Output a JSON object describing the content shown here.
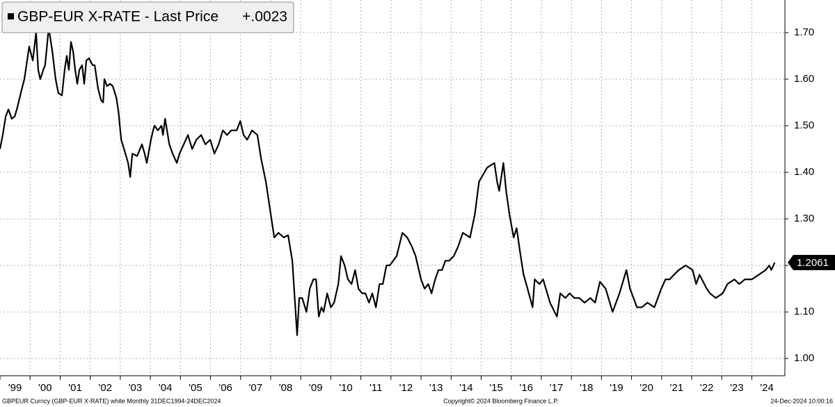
{
  "chart_data": {
    "type": "line",
    "legend_change": "+.0023",
    "footer_left": "GBPEUR Curncy (GBP-EUR X-RATE) white  Monthly 31DEC1994-24DEC2024",
    "footer_center": "Copyright© 2024 Bloomberg Finance L.P.",
    "footer_right": "24-Dec-2024 10:00:16",
    "xlim": [
      1999,
      2025.1
    ],
    "ylim": [
      0.963,
      1.77
    ],
    "grid": true,
    "xticks": [
      {
        "value": 1999,
        "label": "'99"
      },
      {
        "value": 2000,
        "label": "'00"
      },
      {
        "value": 2001,
        "label": "'01"
      },
      {
        "value": 2002,
        "label": "'02"
      },
      {
        "value": 2003,
        "label": "'03"
      },
      {
        "value": 2004,
        "label": "'04"
      },
      {
        "value": 2005,
        "label": "'05"
      },
      {
        "value": 2006,
        "label": "'06"
      },
      {
        "value": 2007,
        "label": "'07"
      },
      {
        "value": 2008,
        "label": "'08"
      },
      {
        "value": 2009,
        "label": "'09"
      },
      {
        "value": 2010,
        "label": "'10"
      },
      {
        "value": 2011,
        "label": "'11"
      },
      {
        "value": 2012,
        "label": "'12"
      },
      {
        "value": 2013,
        "label": "'13"
      },
      {
        "value": 2014,
        "label": "'14"
      },
      {
        "value": 2015,
        "label": "'15"
      },
      {
        "value": 2016,
        "label": "'16"
      },
      {
        "value": 2017,
        "label": "'17"
      },
      {
        "value": 2018,
        "label": "'18"
      },
      {
        "value": 2019,
        "label": "'19"
      },
      {
        "value": 2020,
        "label": "'20"
      },
      {
        "value": 2021,
        "label": "'21"
      },
      {
        "value": 2022,
        "label": "'22"
      },
      {
        "value": 2023,
        "label": "'23"
      },
      {
        "value": 2024,
        "label": "'24"
      }
    ],
    "yticks": [
      {
        "value": 1.0,
        "label": "1.00"
      },
      {
        "value": 1.1,
        "label": "1.10"
      },
      {
        "value": 1.2,
        "label": "1.20"
      },
      {
        "value": 1.3,
        "label": "1.30"
      },
      {
        "value": 1.4,
        "label": "1.40"
      },
      {
        "value": 1.5,
        "label": "1.50"
      },
      {
        "value": 1.6,
        "label": "1.60"
      },
      {
        "value": 1.7,
        "label": "1.70"
      }
    ],
    "series": [
      {
        "name": "GBP-EUR X-RATE - Last Price",
        "color": "#000000",
        "x": [
          1999.0,
          1999.09,
          1999.19,
          1999.28,
          1999.39,
          1999.49,
          1999.58,
          1999.69,
          1999.81,
          1999.88,
          1999.97,
          2000.09,
          2000.2,
          2000.27,
          2000.34,
          2000.44,
          2000.5,
          2000.62,
          2000.74,
          2000.85,
          2000.94,
          2001.06,
          2001.15,
          2001.22,
          2001.29,
          2001.36,
          2001.43,
          2001.5,
          2001.57,
          2001.64,
          2001.73,
          2001.8,
          2001.87,
          2001.96,
          2002.08,
          2002.15,
          2002.26,
          2002.36,
          2002.43,
          2002.47,
          2002.56,
          2002.66,
          2002.75,
          2002.87,
          2002.94,
          2003.03,
          2003.17,
          2003.26,
          2003.33,
          2003.4,
          2003.56,
          2003.72,
          2003.81,
          2003.88,
          2004.02,
          2004.09,
          2004.14,
          2004.25,
          2004.37,
          2004.42,
          2004.49,
          2004.63,
          2004.74,
          2004.88,
          2004.97,
          2005.11,
          2005.25,
          2005.39,
          2005.53,
          2005.69,
          2005.83,
          2005.99,
          2006.13,
          2006.27,
          2006.41,
          2006.55,
          2006.69,
          2006.87,
          2006.99,
          2007.1,
          2007.22,
          2007.38,
          2007.56,
          2007.68,
          2007.84,
          2007.98,
          2008.12,
          2008.26,
          2008.44,
          2008.58,
          2008.72,
          2008.88,
          2008.95,
          2009.05,
          2009.19,
          2009.3,
          2009.42,
          2009.51,
          2009.6,
          2009.69,
          2009.76,
          2009.88,
          2010.0,
          2010.11,
          2010.25,
          2010.34,
          2010.46,
          2010.57,
          2010.69,
          2010.81,
          2010.92,
          2011.04,
          2011.15,
          2011.27,
          2011.38,
          2011.5,
          2011.62,
          2011.73,
          2011.85,
          2011.96,
          2012.19,
          2012.38,
          2012.54,
          2012.7,
          2012.82,
          2013.0,
          2013.12,
          2013.24,
          2013.35,
          2013.47,
          2013.58,
          2013.7,
          2013.81,
          2013.93,
          2014.09,
          2014.23,
          2014.39,
          2014.63,
          2014.79,
          2014.93,
          2015.2,
          2015.44,
          2015.53,
          2015.6,
          2015.74,
          2015.83,
          2015.94,
          2016.08,
          2016.18,
          2016.29,
          2016.41,
          2016.5,
          2016.71,
          2016.78,
          2016.94,
          2017.06,
          2017.29,
          2017.52,
          2017.63,
          2017.8,
          2017.94,
          2018.1,
          2018.26,
          2018.44,
          2018.63,
          2018.79,
          2018.95,
          2019.14,
          2019.37,
          2019.6,
          2019.83,
          2019.95,
          2020.18,
          2020.34,
          2020.53,
          2020.76,
          2020.99,
          2021.13,
          2021.27,
          2021.41,
          2021.57,
          2021.8,
          2022.03,
          2022.15,
          2022.26,
          2022.5,
          2022.61,
          2022.8,
          2023.03,
          2023.19,
          2023.42,
          2023.58,
          2023.77,
          2024.0,
          2024.23,
          2024.46,
          2024.58,
          2024.65,
          2024.76
        ],
        "values": [
          1.45,
          1.48,
          1.52,
          1.535,
          1.515,
          1.52,
          1.54,
          1.57,
          1.6,
          1.63,
          1.67,
          1.64,
          1.7,
          1.62,
          1.6,
          1.62,
          1.63,
          1.71,
          1.66,
          1.6,
          1.57,
          1.565,
          1.62,
          1.65,
          1.62,
          1.68,
          1.66,
          1.62,
          1.59,
          1.62,
          1.63,
          1.59,
          1.64,
          1.645,
          1.63,
          1.63,
          1.58,
          1.555,
          1.55,
          1.6,
          1.585,
          1.59,
          1.585,
          1.56,
          1.53,
          1.47,
          1.44,
          1.42,
          1.39,
          1.44,
          1.435,
          1.46,
          1.44,
          1.42,
          1.47,
          1.49,
          1.5,
          1.49,
          1.5,
          1.48,
          1.515,
          1.46,
          1.44,
          1.42,
          1.44,
          1.46,
          1.48,
          1.45,
          1.47,
          1.48,
          1.46,
          1.47,
          1.44,
          1.46,
          1.49,
          1.48,
          1.49,
          1.49,
          1.51,
          1.48,
          1.47,
          1.49,
          1.48,
          1.43,
          1.38,
          1.32,
          1.26,
          1.27,
          1.26,
          1.265,
          1.21,
          1.05,
          1.13,
          1.13,
          1.1,
          1.15,
          1.17,
          1.17,
          1.09,
          1.11,
          1.1,
          1.14,
          1.11,
          1.12,
          1.16,
          1.22,
          1.2,
          1.17,
          1.16,
          1.19,
          1.15,
          1.14,
          1.14,
          1.12,
          1.14,
          1.11,
          1.16,
          1.16,
          1.2,
          1.2,
          1.22,
          1.27,
          1.26,
          1.24,
          1.22,
          1.17,
          1.15,
          1.16,
          1.14,
          1.17,
          1.19,
          1.19,
          1.21,
          1.21,
          1.22,
          1.24,
          1.27,
          1.26,
          1.31,
          1.38,
          1.41,
          1.42,
          1.38,
          1.36,
          1.42,
          1.36,
          1.31,
          1.26,
          1.28,
          1.23,
          1.18,
          1.16,
          1.11,
          1.17,
          1.16,
          1.17,
          1.12,
          1.09,
          1.14,
          1.13,
          1.14,
          1.13,
          1.13,
          1.12,
          1.13,
          1.12,
          1.165,
          1.15,
          1.1,
          1.14,
          1.19,
          1.15,
          1.11,
          1.11,
          1.12,
          1.11,
          1.15,
          1.17,
          1.17,
          1.18,
          1.19,
          1.2,
          1.19,
          1.16,
          1.18,
          1.15,
          1.14,
          1.13,
          1.14,
          1.16,
          1.17,
          1.16,
          1.17,
          1.17,
          1.18,
          1.19,
          1.2,
          1.19,
          1.2061
        ]
      }
    ]
  }
}
